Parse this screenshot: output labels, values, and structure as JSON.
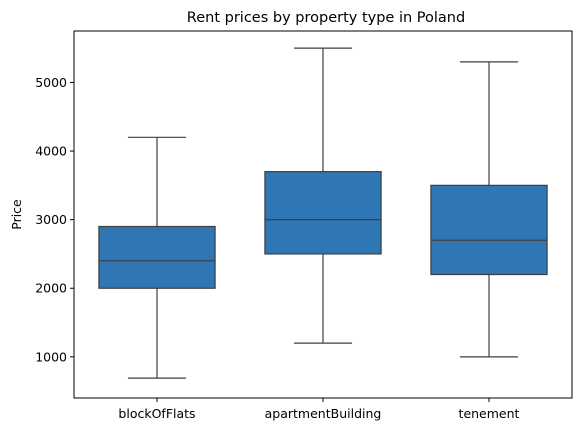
{
  "chart_data": {
    "type": "box",
    "title": "Rent prices by property type in Poland",
    "xlabel": "",
    "ylabel": "Price",
    "ylim": [
      400,
      5750
    ],
    "yticks": [
      1000,
      2000,
      3000,
      4000,
      5000
    ],
    "grid": false,
    "box_color": "#2f77b4",
    "categories": [
      "blockOfFlats",
      "apartmentBuilding",
      "tenement"
    ],
    "boxes": [
      {
        "category": "blockOfFlats",
        "whisker_low": 690,
        "q1": 2000,
        "median": 2400,
        "q3": 2900,
        "whisker_high": 4200
      },
      {
        "category": "apartmentBuilding",
        "whisker_low": 1200,
        "q1": 2500,
        "median": 3000,
        "q3": 3700,
        "whisker_high": 5500
      },
      {
        "category": "tenement",
        "whisker_low": 1000,
        "q1": 2200,
        "median": 2700,
        "q3": 3500,
        "whisker_high": 5300
      }
    ]
  }
}
